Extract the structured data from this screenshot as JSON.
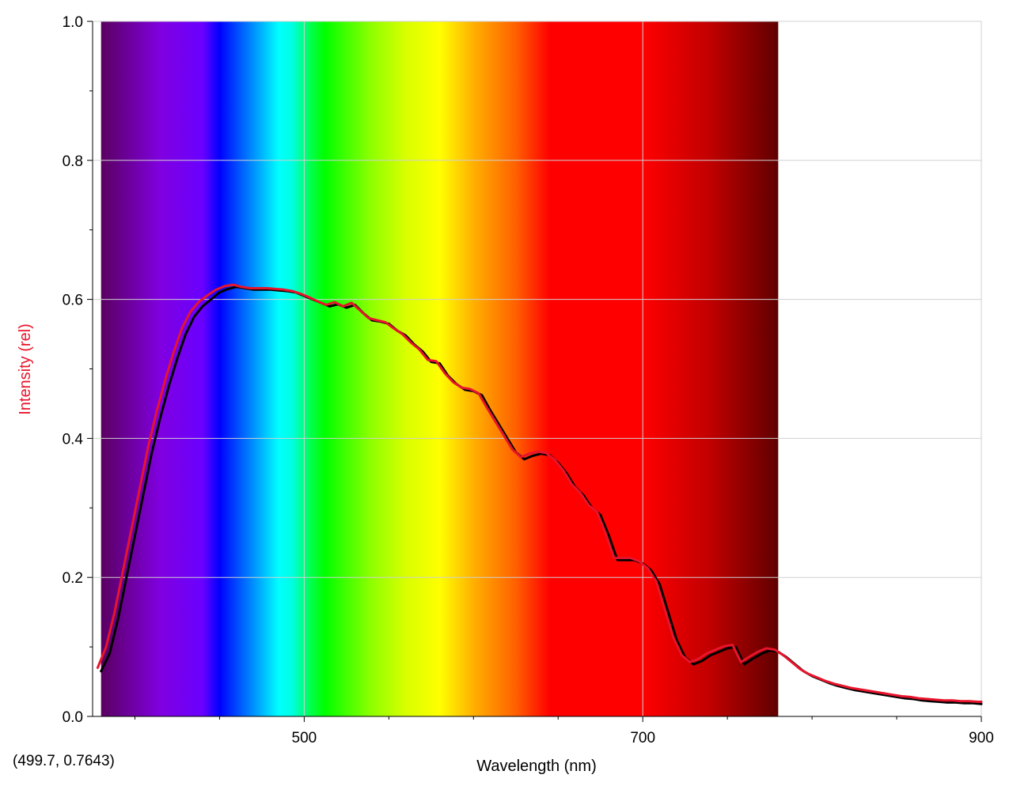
{
  "chart_data": {
    "type": "line",
    "xlabel": "Wavelength (nm)",
    "ylabel": "Intensity (rel)",
    "xlim": [
      375,
      900
    ],
    "ylim": [
      0,
      1
    ],
    "x_tick_labels": [
      "500",
      "700",
      "900"
    ],
    "x_tick_values": [
      500,
      700,
      900
    ],
    "x_minor_ticks": [
      400,
      450,
      550,
      600,
      650,
      750,
      800,
      850
    ],
    "y_tick_labels": [
      "0.0",
      "0.2",
      "0.4",
      "0.6",
      "0.8",
      "1.0"
    ],
    "y_tick_values": [
      0,
      0.2,
      0.4,
      0.6,
      0.8,
      1.0
    ],
    "grid": true,
    "legend": "none",
    "spectrum_band": {
      "range": [
        380,
        780
      ],
      "stops": [
        {
          "wl": 380,
          "color": "#5a0060"
        },
        {
          "wl": 415,
          "color": "#8000e0"
        },
        {
          "wl": 440,
          "color": "#6a00ff"
        },
        {
          "wl": 450,
          "color": "#0000ff"
        },
        {
          "wl": 470,
          "color": "#0090ff"
        },
        {
          "wl": 485,
          "color": "#00ffff"
        },
        {
          "wl": 493,
          "color": "#00ffe0"
        },
        {
          "wl": 505,
          "color": "#00ff40"
        },
        {
          "wl": 512,
          "color": "#00ff00"
        },
        {
          "wl": 540,
          "color": "#90ff00"
        },
        {
          "wl": 560,
          "color": "#d8ff00"
        },
        {
          "wl": 580,
          "color": "#ffff00"
        },
        {
          "wl": 600,
          "color": "#ffb000"
        },
        {
          "wl": 625,
          "color": "#ff6000"
        },
        {
          "wl": 645,
          "color": "#ff0000"
        },
        {
          "wl": 700,
          "color": "#ff0000"
        },
        {
          "wl": 740,
          "color": "#c00000"
        },
        {
          "wl": 780,
          "color": "#600000"
        }
      ]
    },
    "series": [
      {
        "color": "#000000",
        "points": [
          [
            380,
            0.065
          ],
          [
            385,
            0.09
          ],
          [
            390,
            0.14
          ],
          [
            395,
            0.2
          ],
          [
            400,
            0.26
          ],
          [
            405,
            0.32
          ],
          [
            410,
            0.38
          ],
          [
            415,
            0.43
          ],
          [
            420,
            0.475
          ],
          [
            425,
            0.515
          ],
          [
            430,
            0.55
          ],
          [
            435,
            0.575
          ],
          [
            440,
            0.59
          ],
          [
            445,
            0.6
          ],
          [
            450,
            0.61
          ],
          [
            455,
            0.615
          ],
          [
            460,
            0.618
          ],
          [
            465,
            0.616
          ],
          [
            470,
            0.614
          ],
          [
            475,
            0.614
          ],
          [
            480,
            0.614
          ],
          [
            485,
            0.613
          ],
          [
            490,
            0.612
          ],
          [
            495,
            0.61
          ],
          [
            500,
            0.605
          ],
          [
            505,
            0.6
          ],
          [
            510,
            0.595
          ],
          [
            515,
            0.59
          ],
          [
            520,
            0.593
          ],
          [
            525,
            0.588
          ],
          [
            530,
            0.592
          ],
          [
            535,
            0.58
          ],
          [
            540,
            0.57
          ],
          [
            545,
            0.568
          ],
          [
            550,
            0.565
          ],
          [
            555,
            0.555
          ],
          [
            560,
            0.548
          ],
          [
            565,
            0.535
          ],
          [
            570,
            0.525
          ],
          [
            575,
            0.51
          ],
          [
            580,
            0.508
          ],
          [
            585,
            0.49
          ],
          [
            590,
            0.478
          ],
          [
            595,
            0.47
          ],
          [
            600,
            0.468
          ],
          [
            605,
            0.462
          ],
          [
            610,
            0.44
          ],
          [
            615,
            0.42
          ],
          [
            620,
            0.4
          ],
          [
            625,
            0.38
          ],
          [
            630,
            0.37
          ],
          [
            635,
            0.375
          ],
          [
            640,
            0.378
          ],
          [
            645,
            0.376
          ],
          [
            650,
            0.365
          ],
          [
            655,
            0.35
          ],
          [
            660,
            0.33
          ],
          [
            665,
            0.318
          ],
          [
            670,
            0.3
          ],
          [
            675,
            0.29
          ],
          [
            680,
            0.26
          ],
          [
            685,
            0.225
          ],
          [
            690,
            0.225
          ],
          [
            695,
            0.225
          ],
          [
            700,
            0.22
          ],
          [
            705,
            0.21
          ],
          [
            710,
            0.19
          ],
          [
            715,
            0.15
          ],
          [
            720,
            0.11
          ],
          [
            725,
            0.085
          ],
          [
            730,
            0.075
          ],
          [
            735,
            0.08
          ],
          [
            740,
            0.088
          ],
          [
            745,
            0.093
          ],
          [
            750,
            0.098
          ],
          [
            755,
            0.1
          ],
          [
            760,
            0.075
          ],
          [
            765,
            0.083
          ],
          [
            770,
            0.09
          ],
          [
            775,
            0.095
          ],
          [
            780,
            0.093
          ],
          [
            785,
            0.085
          ],
          [
            790,
            0.075
          ],
          [
            795,
            0.065
          ],
          [
            800,
            0.058
          ],
          [
            805,
            0.053
          ],
          [
            810,
            0.048
          ],
          [
            815,
            0.044
          ],
          [
            820,
            0.041
          ],
          [
            825,
            0.038
          ],
          [
            830,
            0.036
          ],
          [
            835,
            0.034
          ],
          [
            840,
            0.032
          ],
          [
            845,
            0.03
          ],
          [
            850,
            0.028
          ],
          [
            855,
            0.026
          ],
          [
            860,
            0.025
          ],
          [
            865,
            0.023
          ],
          [
            870,
            0.022
          ],
          [
            875,
            0.021
          ],
          [
            880,
            0.02
          ],
          [
            885,
            0.02
          ],
          [
            890,
            0.019
          ],
          [
            895,
            0.019
          ],
          [
            900,
            0.018
          ]
        ]
      },
      {
        "color": "#e8142c",
        "points": [
          [
            378,
            0.07
          ],
          [
            383,
            0.1
          ],
          [
            388,
            0.15
          ],
          [
            393,
            0.21
          ],
          [
            398,
            0.27
          ],
          [
            403,
            0.33
          ],
          [
            408,
            0.39
          ],
          [
            413,
            0.44
          ],
          [
            418,
            0.485
          ],
          [
            423,
            0.525
          ],
          [
            428,
            0.56
          ],
          [
            433,
            0.583
          ],
          [
            438,
            0.597
          ],
          [
            443,
            0.606
          ],
          [
            448,
            0.614
          ],
          [
            453,
            0.619
          ],
          [
            458,
            0.621
          ],
          [
            463,
            0.618
          ],
          [
            468,
            0.616
          ],
          [
            473,
            0.616
          ],
          [
            478,
            0.616
          ],
          [
            483,
            0.615
          ],
          [
            488,
            0.614
          ],
          [
            493,
            0.612
          ],
          [
            498,
            0.608
          ],
          [
            503,
            0.603
          ],
          [
            508,
            0.597
          ],
          [
            513,
            0.592
          ],
          [
            518,
            0.596
          ],
          [
            523,
            0.59
          ],
          [
            528,
            0.595
          ],
          [
            533,
            0.584
          ],
          [
            538,
            0.573
          ],
          [
            543,
            0.57
          ],
          [
            548,
            0.567
          ],
          [
            553,
            0.558
          ],
          [
            558,
            0.55
          ],
          [
            563,
            0.538
          ],
          [
            568,
            0.528
          ],
          [
            573,
            0.513
          ],
          [
            578,
            0.511
          ],
          [
            583,
            0.494
          ],
          [
            588,
            0.481
          ],
          [
            593,
            0.473
          ],
          [
            598,
            0.471
          ],
          [
            603,
            0.465
          ],
          [
            608,
            0.444
          ],
          [
            613,
            0.424
          ],
          [
            618,
            0.404
          ],
          [
            623,
            0.384
          ],
          [
            628,
            0.373
          ],
          [
            633,
            0.378
          ],
          [
            638,
            0.381
          ],
          [
            643,
            0.379
          ],
          [
            648,
            0.369
          ],
          [
            653,
            0.354
          ],
          [
            658,
            0.334
          ],
          [
            663,
            0.322
          ],
          [
            668,
            0.304
          ],
          [
            673,
            0.294
          ],
          [
            678,
            0.264
          ],
          [
            683,
            0.228
          ],
          [
            688,
            0.228
          ],
          [
            693,
            0.228
          ],
          [
            698,
            0.223
          ],
          [
            703,
            0.213
          ],
          [
            708,
            0.194
          ],
          [
            713,
            0.154
          ],
          [
            718,
            0.114
          ],
          [
            723,
            0.088
          ],
          [
            728,
            0.078
          ],
          [
            733,
            0.083
          ],
          [
            738,
            0.091
          ],
          [
            743,
            0.096
          ],
          [
            748,
            0.101
          ],
          [
            753,
            0.103
          ],
          [
            758,
            0.078
          ],
          [
            763,
            0.086
          ],
          [
            768,
            0.093
          ],
          [
            773,
            0.098
          ],
          [
            778,
            0.096
          ],
          [
            783,
            0.088
          ],
          [
            788,
            0.078
          ],
          [
            793,
            0.068
          ],
          [
            798,
            0.061
          ],
          [
            803,
            0.056
          ],
          [
            808,
            0.051
          ],
          [
            813,
            0.047
          ],
          [
            818,
            0.044
          ],
          [
            823,
            0.041
          ],
          [
            828,
            0.039
          ],
          [
            833,
            0.037
          ],
          [
            838,
            0.035
          ],
          [
            843,
            0.033
          ],
          [
            848,
            0.031
          ],
          [
            853,
            0.029
          ],
          [
            858,
            0.028
          ],
          [
            863,
            0.026
          ],
          [
            868,
            0.025
          ],
          [
            873,
            0.024
          ],
          [
            878,
            0.023
          ],
          [
            883,
            0.023
          ],
          [
            888,
            0.022
          ],
          [
            893,
            0.022
          ],
          [
            898,
            0.021
          ],
          [
            900,
            0.021
          ]
        ]
      }
    ]
  },
  "readout": "(499.7, 0.7643)",
  "colors": {
    "ylabel": "#e8142c",
    "grid": "#d0d0d0",
    "axis": "#000000"
  }
}
